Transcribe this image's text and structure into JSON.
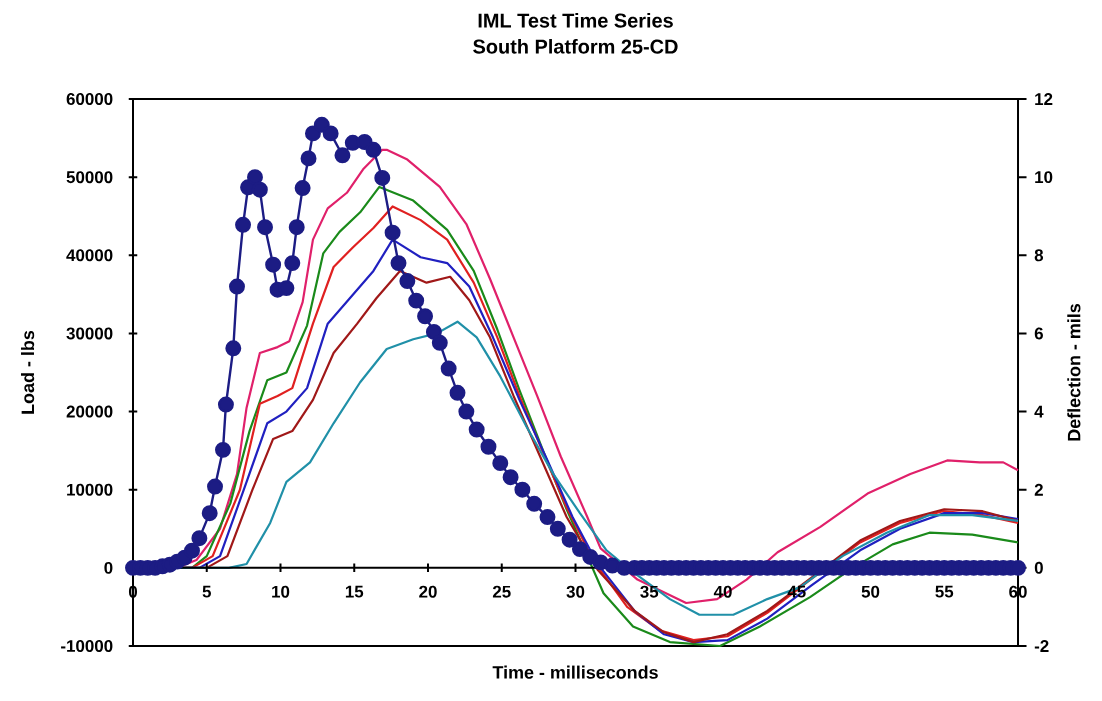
{
  "chart_data": {
    "type": "line",
    "title": "IML Test Time Series",
    "subtitle": "South Platform 25-CD",
    "xlabel": "Time - milliseconds",
    "ylabel": "Load - lbs",
    "y2label": "Deflection - mils",
    "xlim": [
      0,
      60
    ],
    "xticks": [
      0,
      5,
      10,
      15,
      20,
      25,
      30,
      35,
      40,
      45,
      50,
      55,
      60
    ],
    "ylim": [
      -10000,
      60000
    ],
    "yticks": [
      -10000,
      0,
      10000,
      20000,
      30000,
      40000,
      50000,
      60000
    ],
    "y2lim": [
      -2,
      12
    ],
    "y2ticks": [
      -2,
      0,
      2,
      4,
      6,
      8,
      10,
      12
    ],
    "series": [
      {
        "axis": "y2",
        "color": "#e0206a",
        "marker": "none",
        "x": [
          0,
          3,
          4.3,
          5.9,
          7.05,
          7.7,
          8.6,
          9.8,
          10.6,
          11.5,
          12.2,
          13.2,
          14.5,
          15.6,
          16.9,
          17.2,
          18.6,
          20.8,
          22.6,
          24.2,
          25.8,
          27.4,
          29.0,
          30.8,
          31.7,
          34.2,
          37.5,
          39.6,
          41.6,
          43.7,
          46.6,
          49.8,
          52.7,
          55.2,
          57.4,
          59,
          60
        ],
        "values": [
          0,
          0,
          0.2,
          1.0,
          2.4,
          4.1,
          5.5,
          5.65,
          5.8,
          6.8,
          8.4,
          9.2,
          9.6,
          10.2,
          10.7,
          10.7,
          10.45,
          9.75,
          8.8,
          7.4,
          5.9,
          4.4,
          2.85,
          1.3,
          0.5,
          -0.3,
          -0.9,
          -0.8,
          -0.3,
          0.4,
          1.05,
          1.9,
          2.4,
          2.75,
          2.7,
          2.7,
          2.5
        ]
      },
      {
        "axis": "y2",
        "color": "#1a8a1a",
        "marker": "none",
        "x": [
          0,
          4,
          5,
          6.6,
          7.9,
          9.1,
          10.4,
          11.8,
          12.9,
          14.0,
          15.4,
          16.7,
          19,
          21.3,
          23.1,
          24.7,
          26.2,
          27.8,
          29.4,
          30.8,
          31.9,
          33.9,
          36.4,
          39.8,
          42.5,
          45.9,
          48.8,
          51.5,
          54,
          56.9,
          60
        ],
        "values": [
          0,
          0,
          0.3,
          1.65,
          3.5,
          4.8,
          5.0,
          6.2,
          8.05,
          8.6,
          9.1,
          9.75,
          9.4,
          8.65,
          7.6,
          6.1,
          4.55,
          3.0,
          1.5,
          0.3,
          -0.65,
          -1.5,
          -1.9,
          -2.0,
          -1.5,
          -0.75,
          0.0,
          0.6,
          0.9,
          0.85,
          0.65
        ]
      },
      {
        "axis": "y2",
        "color": "#e02020",
        "marker": "none",
        "x": [
          0,
          4,
          5.4,
          7.25,
          8.6,
          9.8,
          10.8,
          12.2,
          13.6,
          14.9,
          16.3,
          17.6,
          19.5,
          21.3,
          23.1,
          24.7,
          26.2,
          27.8,
          29.4,
          31.2,
          33.5,
          35.7,
          38,
          40.3,
          43,
          46.1,
          49.3,
          52,
          54.9,
          57.6,
          60
        ],
        "values": [
          0,
          0,
          0.3,
          2.0,
          4.2,
          4.4,
          4.6,
          6.25,
          7.7,
          8.2,
          8.7,
          9.25,
          8.9,
          8.4,
          7.3,
          5.9,
          4.4,
          2.95,
          1.55,
          0.2,
          -1.0,
          -1.6,
          -1.85,
          -1.75,
          -1.15,
          -0.25,
          0.65,
          1.15,
          1.45,
          1.35,
          1.15
        ]
      },
      {
        "axis": "y2",
        "color": "#2020c0",
        "marker": "none",
        "x": [
          0,
          4.5,
          5.9,
          7.7,
          9.1,
          10.4,
          11.8,
          13.2,
          14.7,
          16.3,
          17.6,
          19.5,
          21.3,
          22.8,
          24.4,
          26.2,
          28.1,
          29.8,
          31.5,
          34,
          36,
          38,
          40.3,
          43,
          46,
          49.3,
          52,
          55,
          57.6,
          60
        ],
        "values": [
          0,
          0,
          0.3,
          2.2,
          3.7,
          4.0,
          4.6,
          6.25,
          6.9,
          7.6,
          8.4,
          7.95,
          7.8,
          7.2,
          5.9,
          4.3,
          2.75,
          1.3,
          0.1,
          -1.1,
          -1.7,
          -1.9,
          -1.85,
          -1.3,
          -0.45,
          0.45,
          1.0,
          1.4,
          1.4,
          1.25
        ]
      },
      {
        "axis": "y2",
        "color": "#a01818",
        "marker": "none",
        "x": [
          0,
          5,
          6.4,
          8.1,
          9.5,
          10.8,
          12.2,
          13.6,
          15.2,
          16.5,
          18.1,
          19.9,
          21.5,
          22.8,
          24.2,
          25.8,
          27.6,
          29.4,
          31.5,
          34,
          36,
          38,
          40.3,
          43,
          46,
          49.3,
          52,
          55,
          57.6,
          60
        ],
        "values": [
          0,
          0,
          0.3,
          2.0,
          3.3,
          3.5,
          4.3,
          5.5,
          6.25,
          6.9,
          7.6,
          7.3,
          7.45,
          6.85,
          5.9,
          4.4,
          2.85,
          1.3,
          -0.05,
          -1.1,
          -1.65,
          -1.9,
          -1.7,
          -1.1,
          -0.25,
          0.7,
          1.2,
          1.5,
          1.45,
          1.2
        ]
      },
      {
        "axis": "y2",
        "color": "#2090a8",
        "marker": "none",
        "x": [
          0,
          6.5,
          7.7,
          9.3,
          10.4,
          12.0,
          13.6,
          15.4,
          17.2,
          19,
          20.6,
          22,
          23.3,
          24.9,
          26.7,
          28.5,
          30.3,
          32.1,
          33.7,
          36.4,
          38.4,
          40.7,
          43,
          45.2,
          48.1,
          51.1,
          54,
          56.9,
          60
        ],
        "values": [
          0,
          0,
          0.1,
          1.15,
          2.2,
          2.7,
          3.7,
          4.75,
          5.6,
          5.85,
          6.0,
          6.3,
          5.9,
          4.9,
          3.6,
          2.4,
          1.4,
          0.45,
          -0.05,
          -0.8,
          -1.2,
          -1.2,
          -0.8,
          -0.5,
          0.3,
          0.9,
          1.35,
          1.35,
          1.2
        ]
      },
      {
        "axis": "y",
        "color": "#1c1c84",
        "marker": "circle",
        "x": [
          0,
          0.5,
          1,
          1.5,
          2,
          2.5,
          3,
          3.5,
          4,
          4.5,
          5.2,
          5.56,
          6.1,
          6.3,
          6.8,
          7.05,
          7.46,
          7.8,
          8.27,
          8.6,
          8.95,
          9.5,
          9.8,
          10.4,
          10.8,
          11.1,
          11.5,
          11.9,
          12.2,
          12.8,
          13.4,
          14.2,
          14.9,
          15.7,
          16.3,
          16.9,
          17.6,
          18.0,
          18.6,
          19.2,
          19.8,
          20.4,
          20.8,
          21.4,
          22.0,
          22.6,
          23.3,
          24.1,
          24.9,
          25.6,
          26.4,
          27.2,
          28.1,
          28.8,
          29.6,
          30.3,
          31.0,
          31.7,
          32.5,
          33.3,
          34,
          34.5,
          35,
          35.5,
          36,
          36.5,
          37,
          37.5,
          38,
          38.5,
          39,
          39.5,
          40,
          40.5,
          41,
          41.5,
          42,
          42.5,
          43,
          43.5,
          44,
          44.5,
          45,
          45.5,
          46,
          46.5,
          47,
          47.5,
          48,
          48.5,
          49,
          49.5,
          50,
          50.5,
          51,
          51.5,
          52,
          52.5,
          53,
          53.5,
          54,
          54.5,
          55,
          55.5,
          56,
          56.5,
          57,
          57.5,
          58,
          58.5,
          59,
          59.5,
          60
        ],
        "values": [
          0,
          0,
          0,
          0,
          200,
          400,
          800,
          1300,
          2200,
          3800,
          7000,
          10400,
          15100,
          20900,
          28100,
          36000,
          43900,
          48700,
          50000,
          48400,
          43600,
          38800,
          35600,
          35800,
          39000,
          43600,
          48600,
          52400,
          55600,
          56700,
          55600,
          52800,
          54400,
          54500,
          53500,
          49900,
          42900,
          39000,
          36700,
          34200,
          32200,
          30200,
          28800,
          25500,
          22400,
          20000,
          17700,
          15500,
          13400,
          11600,
          10000,
          8200,
          6500,
          5000,
          3600,
          2400,
          1400,
          700,
          300,
          0,
          0,
          0,
          0,
          0,
          0,
          0,
          0,
          0,
          0,
          0,
          0,
          0,
          0,
          0,
          0,
          0,
          0,
          0,
          0,
          0,
          0,
          0,
          0,
          0,
          0,
          0,
          0,
          0,
          0,
          0,
          0,
          0,
          0,
          0,
          0,
          0,
          0,
          0,
          0,
          0,
          0,
          0,
          0,
          0,
          0,
          0,
          0,
          0,
          0,
          0,
          0,
          0,
          0
        ]
      }
    ]
  }
}
